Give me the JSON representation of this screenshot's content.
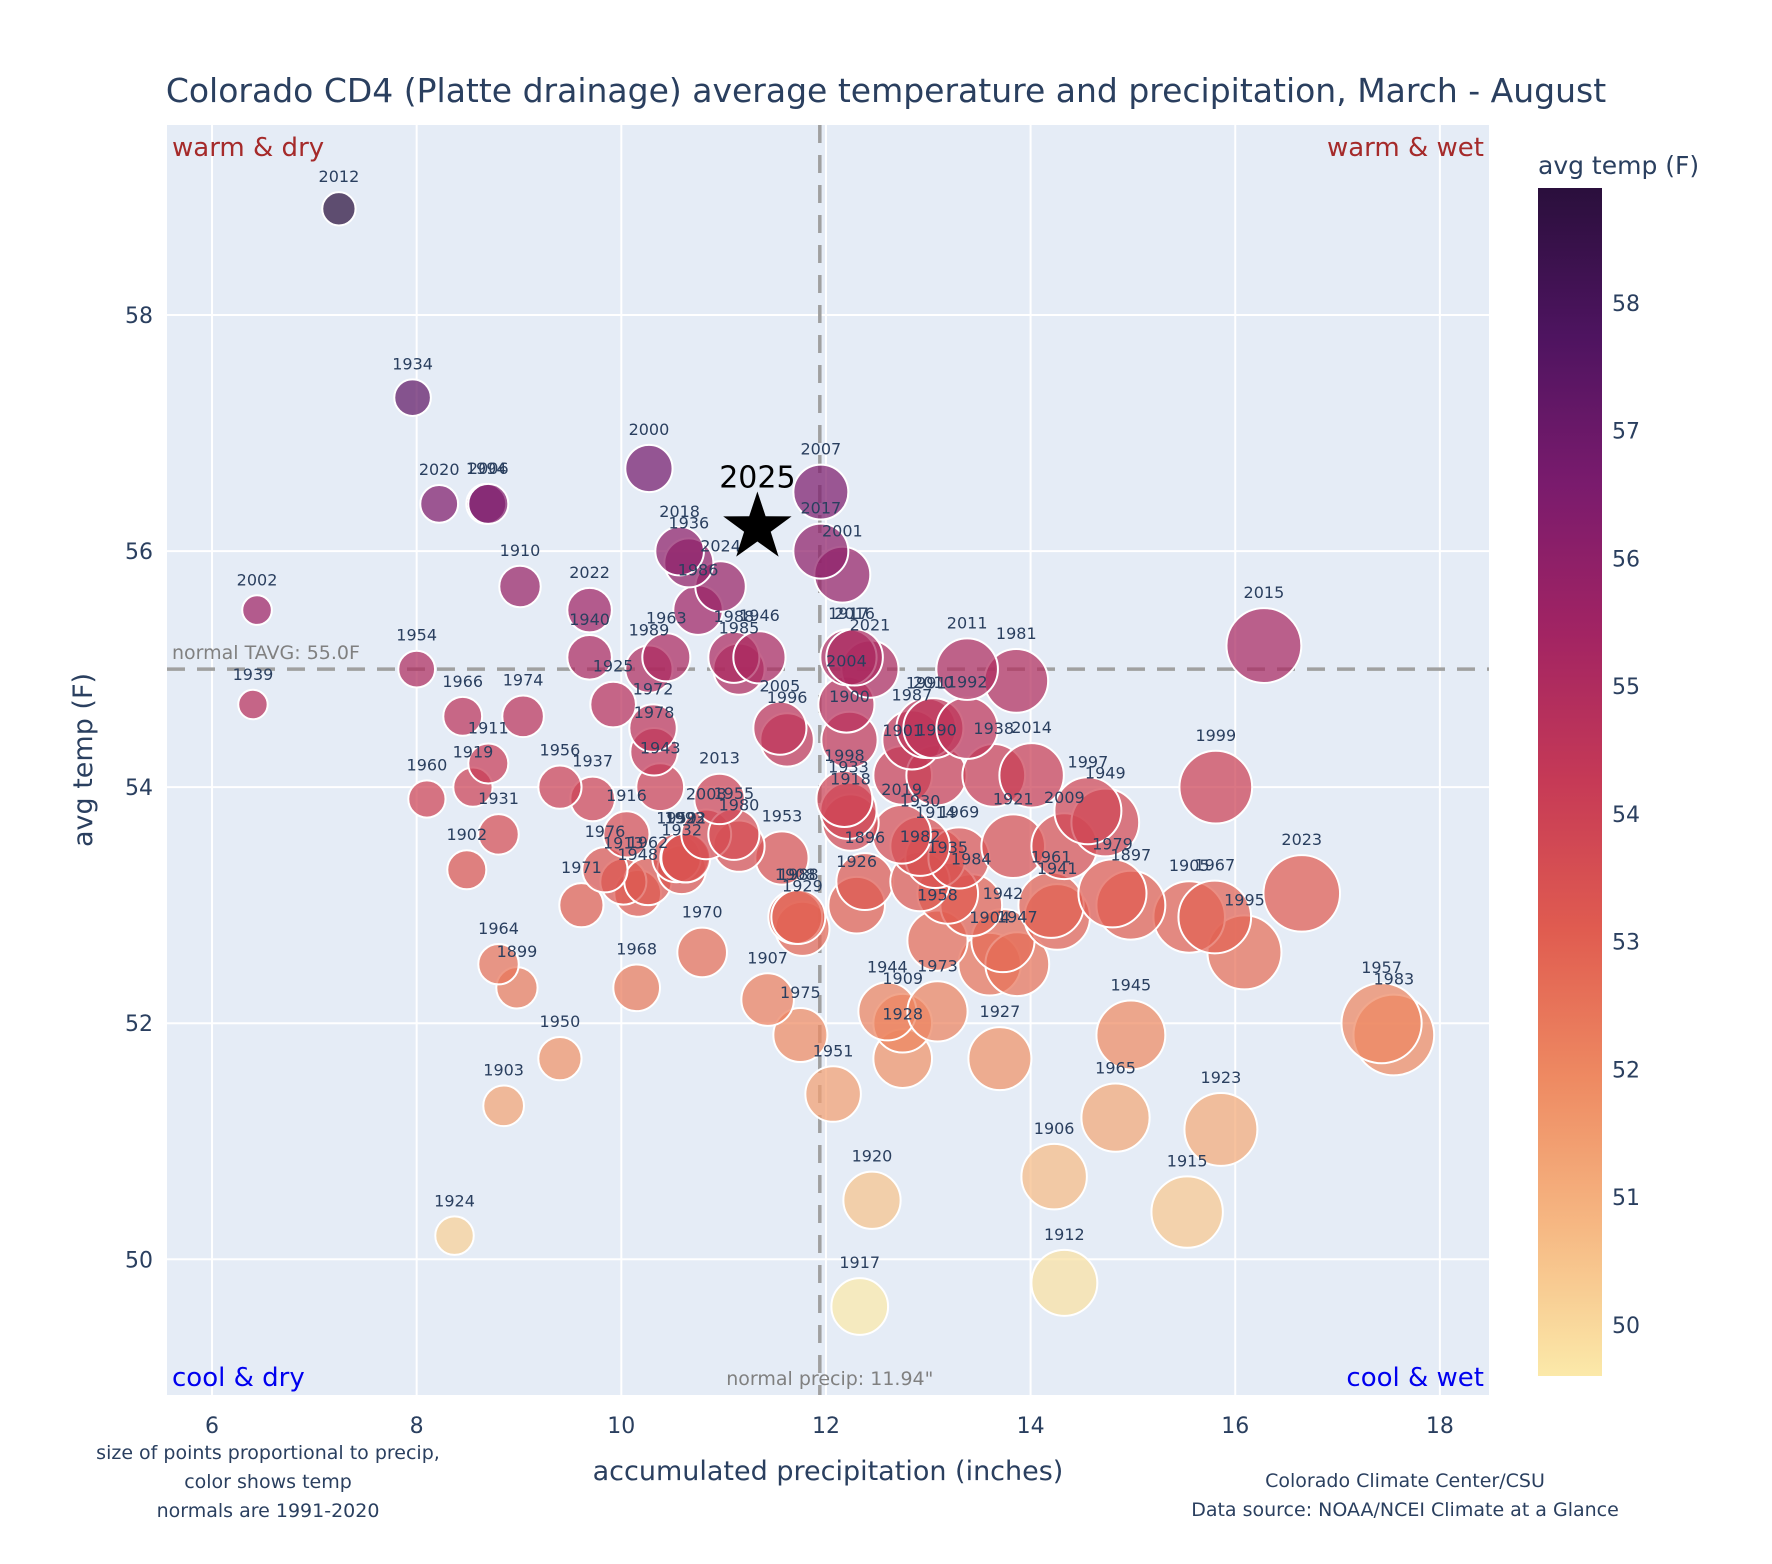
{
  "chart_data": {
    "type": "scatter",
    "title": "Colorado CD4 (Platte drainage) average temperature and precipitation, March - August",
    "xlabel": "accumulated precipitation (inches)",
    "ylabel": "avg temp (F)",
    "xlim": [
      5.56,
      18.48
    ],
    "ylim": [
      48.85,
      59.61
    ],
    "xticks": [
      6,
      8,
      10,
      12,
      14,
      16,
      18
    ],
    "yticks": [
      50,
      52,
      54,
      56,
      58
    ],
    "grid": true,
    "colorbar": {
      "title": "avg temp (F)",
      "range": [
        49.6,
        58.9
      ],
      "ticks": [
        50,
        51,
        52,
        53,
        54,
        55,
        56,
        57,
        58
      ],
      "colors": [
        "#fbe9a9",
        "#f6b883",
        "#ee8a62",
        "#e05c50",
        "#c63a56",
        "#a22463",
        "#7a1b6d",
        "#4e1460",
        "#2a0f3c"
      ]
    },
    "normals": {
      "precip": 11.94,
      "precip_label": "normal precip: 11.94\"",
      "temp": 55.0,
      "temp_label": "normal TAVG: 55.0F"
    },
    "quadrants": {
      "top_left": "warm & dry",
      "top_right": "warm & wet",
      "bottom_left": "cool & dry",
      "bottom_right": "cool & wet"
    },
    "highlight": {
      "year": "2025",
      "precip": 11.33,
      "temp": 56.2,
      "marker": "star"
    },
    "notes": {
      "left": [
        "size of points proportional to precip,",
        "color shows temp",
        "normals are 1991-2020"
      ],
      "right": [
        "Colorado Climate Center/CSU",
        "Data source: NOAA/NCEI Climate at a Glance"
      ]
    },
    "points": [
      {
        "year": "2012",
        "precip": 7.24,
        "temp": 58.9
      },
      {
        "year": "1934",
        "precip": 7.96,
        "temp": 57.3
      },
      {
        "year": "2020",
        "precip": 8.22,
        "temp": 56.4
      },
      {
        "year": "1994",
        "precip": 8.68,
        "temp": 56.4
      },
      {
        "year": "2006",
        "precip": 8.7,
        "temp": 56.4
      },
      {
        "year": "2000",
        "precip": 10.27,
        "temp": 56.7
      },
      {
        "year": "2007",
        "precip": 11.95,
        "temp": 56.5
      },
      {
        "year": "2017",
        "precip": 11.95,
        "temp": 56.0
      },
      {
        "year": "2001",
        "precip": 12.16,
        "temp": 55.8
      },
      {
        "year": "2018",
        "precip": 10.57,
        "temp": 56.0
      },
      {
        "year": "1936",
        "precip": 10.66,
        "temp": 55.9
      },
      {
        "year": "2024",
        "precip": 10.97,
        "temp": 55.7
      },
      {
        "year": "1986",
        "precip": 10.75,
        "temp": 55.5
      },
      {
        "year": "1910",
        "precip": 9.01,
        "temp": 55.7
      },
      {
        "year": "2002",
        "precip": 6.44,
        "temp": 55.5
      },
      {
        "year": "2022",
        "precip": 9.69,
        "temp": 55.5
      },
      {
        "year": "1940",
        "precip": 9.69,
        "temp": 55.1
      },
      {
        "year": "1954",
        "precip": 8.0,
        "temp": 55.0
      },
      {
        "year": "1939",
        "precip": 6.4,
        "temp": 54.7
      },
      {
        "year": "1963",
        "precip": 10.44,
        "temp": 55.1
      },
      {
        "year": "1989",
        "precip": 10.27,
        "temp": 55.0
      },
      {
        "year": "1988",
        "precip": 11.1,
        "temp": 55.1
      },
      {
        "year": "1946",
        "precip": 11.35,
        "temp": 55.1
      },
      {
        "year": "1985",
        "precip": 11.15,
        "temp": 55.0
      },
      {
        "year": "1917",
        "precip": 12.22,
        "temp": 55.1
      },
      {
        "year": "2016",
        "precip": 12.28,
        "temp": 55.1
      },
      {
        "year": "2021",
        "precip": 12.43,
        "temp": 55.0
      },
      {
        "year": "2004",
        "precip": 12.2,
        "temp": 54.7
      },
      {
        "year": "2011",
        "precip": 13.38,
        "temp": 55.0
      },
      {
        "year": "1981",
        "precip": 13.86,
        "temp": 54.9
      },
      {
        "year": "2015",
        "precip": 16.28,
        "temp": 55.2
      },
      {
        "year": "1925",
        "precip": 9.92,
        "temp": 54.7
      },
      {
        "year": "1966",
        "precip": 8.45,
        "temp": 54.6
      },
      {
        "year": "1974",
        "precip": 9.04,
        "temp": 54.6
      },
      {
        "year": "1972",
        "precip": 10.31,
        "temp": 54.5
      },
      {
        "year": "1978",
        "precip": 10.32,
        "temp": 54.3
      },
      {
        "year": "2005",
        "precip": 11.55,
        "temp": 54.5
      },
      {
        "year": "1996",
        "precip": 11.62,
        "temp": 54.4
      },
      {
        "year": "1900",
        "precip": 12.23,
        "temp": 54.4
      },
      {
        "year": "1987",
        "precip": 12.84,
        "temp": 54.4
      },
      {
        "year": "1991",
        "precip": 12.98,
        "temp": 54.5
      },
      {
        "year": "2010",
        "precip": 13.05,
        "temp": 54.5
      },
      {
        "year": "1992",
        "precip": 13.38,
        "temp": 54.5
      },
      {
        "year": "1901",
        "precip": 12.75,
        "temp": 54.1
      },
      {
        "year": "1990",
        "precip": 13.08,
        "temp": 54.1
      },
      {
        "year": "1938",
        "precip": 13.64,
        "temp": 54.1
      },
      {
        "year": "2014",
        "precip": 14.01,
        "temp": 54.1
      },
      {
        "year": "1911",
        "precip": 8.7,
        "temp": 54.2
      },
      {
        "year": "1919",
        "precip": 8.55,
        "temp": 54.0
      },
      {
        "year": "1960",
        "precip": 8.1,
        "temp": 53.9
      },
      {
        "year": "1956",
        "precip": 9.4,
        "temp": 54.0
      },
      {
        "year": "1937",
        "precip": 9.72,
        "temp": 53.9
      },
      {
        "year": "1943",
        "precip": 10.38,
        "temp": 54.0
      },
      {
        "year": "2013",
        "precip": 10.96,
        "temp": 53.9
      },
      {
        "year": "1998",
        "precip": 12.18,
        "temp": 53.9
      },
      {
        "year": "1933",
        "precip": 12.22,
        "temp": 53.8
      },
      {
        "year": "1918",
        "precip": 12.24,
        "temp": 53.7
      },
      {
        "year": "1999",
        "precip": 15.81,
        "temp": 54.0
      },
      {
        "year": "1997",
        "precip": 14.56,
        "temp": 53.8
      },
      {
        "year": "1949",
        "precip": 14.73,
        "temp": 53.7
      },
      {
        "year": "1931",
        "precip": 8.8,
        "temp": 53.6
      },
      {
        "year": "1902",
        "precip": 8.49,
        "temp": 53.3
      },
      {
        "year": "1916",
        "precip": 10.05,
        "temp": 53.6
      },
      {
        "year": "2008",
        "precip": 10.83,
        "temp": 53.6
      },
      {
        "year": "1955",
        "precip": 11.1,
        "temp": 53.6
      },
      {
        "year": "1959",
        "precip": 10.54,
        "temp": 53.4
      },
      {
        "year": "1980",
        "precip": 11.15,
        "temp": 53.5
      },
      {
        "year": "1993",
        "precip": 10.62,
        "temp": 53.4
      },
      {
        "year": "1932",
        "precip": 10.59,
        "temp": 53.3
      },
      {
        "year": "1922",
        "precip": 10.63,
        "temp": 53.4
      },
      {
        "year": "1976",
        "precip": 9.84,
        "temp": 53.3
      },
      {
        "year": "1913",
        "precip": 10.02,
        "temp": 53.2
      },
      {
        "year": "1962",
        "precip": 10.26,
        "temp": 53.2
      },
      {
        "year": "1948",
        "precip": 10.16,
        "temp": 53.1
      },
      {
        "year": "1971",
        "precip": 9.61,
        "temp": 53.0
      },
      {
        "year": "1953",
        "precip": 11.57,
        "temp": 53.4
      },
      {
        "year": "1921",
        "precip": 13.83,
        "temp": 53.5
      },
      {
        "year": "2009",
        "precip": 14.33,
        "temp": 53.5
      },
      {
        "year": "2019",
        "precip": 12.74,
        "temp": 53.6
      },
      {
        "year": "1930",
        "precip": 12.92,
        "temp": 53.5
      },
      {
        "year": "1914",
        "precip": 13.07,
        "temp": 53.4
      },
      {
        "year": "1969",
        "precip": 13.3,
        "temp": 53.4
      },
      {
        "year": "1896",
        "precip": 12.38,
        "temp": 53.2
      },
      {
        "year": "1982",
        "precip": 12.92,
        "temp": 53.2
      },
      {
        "year": "1935",
        "precip": 13.19,
        "temp": 53.1
      },
      {
        "year": "1984",
        "precip": 13.42,
        "temp": 53.0
      },
      {
        "year": "1979",
        "precip": 14.8,
        "temp": 53.1
      },
      {
        "year": "1897",
        "precip": 14.98,
        "temp": 53.0
      },
      {
        "year": "1961",
        "precip": 14.2,
        "temp": 53.0
      },
      {
        "year": "1941",
        "precip": 14.26,
        "temp": 52.9
      },
      {
        "year": "1905",
        "precip": 15.55,
        "temp": 52.9
      },
      {
        "year": "1967",
        "precip": 15.8,
        "temp": 52.9
      },
      {
        "year": "2023",
        "precip": 16.65,
        "temp": 53.1
      },
      {
        "year": "1995",
        "precip": 16.09,
        "temp": 52.6
      },
      {
        "year": "1926",
        "precip": 12.3,
        "temp": 53.0
      },
      {
        "year": "1908",
        "precip": 11.7,
        "temp": 52.9
      },
      {
        "year": "1988b",
        "precip": 11.73,
        "temp": 52.9
      },
      {
        "year": "1929",
        "precip": 11.77,
        "temp": 52.8
      },
      {
        "year": "1958",
        "precip": 13.09,
        "temp": 52.7
      },
      {
        "year": "1942",
        "precip": 13.73,
        "temp": 52.7
      },
      {
        "year": "1904",
        "precip": 13.6,
        "temp": 52.5
      },
      {
        "year": "1947",
        "precip": 13.87,
        "temp": 52.5
      },
      {
        "year": "1964",
        "precip": 8.8,
        "temp": 52.5
      },
      {
        "year": "1899",
        "precip": 8.98,
        "temp": 52.3
      },
      {
        "year": "1970",
        "precip": 10.79,
        "temp": 52.6
      },
      {
        "year": "1968",
        "precip": 10.15,
        "temp": 52.3
      },
      {
        "year": "1907",
        "precip": 11.43,
        "temp": 52.2
      },
      {
        "year": "1975",
        "precip": 11.75,
        "temp": 51.9
      },
      {
        "year": "1944",
        "precip": 12.6,
        "temp": 52.1
      },
      {
        "year": "1909",
        "precip": 12.75,
        "temp": 52.0
      },
      {
        "year": "1973",
        "precip": 13.09,
        "temp": 52.1
      },
      {
        "year": "1928",
        "precip": 12.75,
        "temp": 51.7
      },
      {
        "year": "1927",
        "precip": 13.7,
        "temp": 51.7
      },
      {
        "year": "1945",
        "precip": 14.98,
        "temp": 51.9
      },
      {
        "year": "1957",
        "precip": 17.43,
        "temp": 52.0
      },
      {
        "year": "1983",
        "precip": 17.55,
        "temp": 51.9
      },
      {
        "year": "1950",
        "precip": 9.4,
        "temp": 51.7
      },
      {
        "year": "1951",
        "precip": 12.07,
        "temp": 51.4
      },
      {
        "year": "1903",
        "precip": 8.85,
        "temp": 51.3
      },
      {
        "year": "1965",
        "precip": 14.83,
        "temp": 51.2
      },
      {
        "year": "1923",
        "precip": 15.86,
        "temp": 51.1
      },
      {
        "year": "1906",
        "precip": 14.23,
        "temp": 50.7
      },
      {
        "year": "1920",
        "precip": 12.45,
        "temp": 50.5
      },
      {
        "year": "1915",
        "precip": 15.53,
        "temp": 50.4
      },
      {
        "year": "1924",
        "precip": 8.37,
        "temp": 50.2
      },
      {
        "year": "1912",
        "precip": 14.33,
        "temp": 49.8
      },
      {
        "year": "1917b",
        "precip": 12.33,
        "temp": 49.6
      }
    ]
  }
}
